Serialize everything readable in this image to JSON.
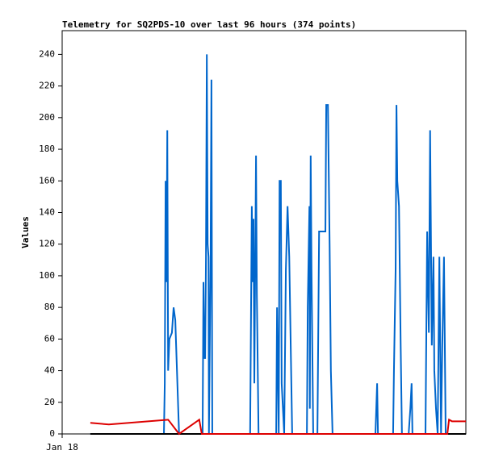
{
  "chart_data": {
    "type": "line",
    "title": "Telemetry for SQ2PDS-10 over last 96 hours (374 points)",
    "y_label": "Values",
    "xlim": [
      0,
      96
    ],
    "xticks": [
      {
        "value": 0,
        "label": "Jan 18"
      }
    ],
    "ylim": [
      0,
      255
    ],
    "yticks": [
      0,
      20,
      40,
      60,
      80,
      100,
      120,
      140,
      160,
      180,
      200,
      220,
      240
    ],
    "series": [
      {
        "color": "#0066cc",
        "x": [
          6.7,
          24.2,
          24.4,
          24.6,
          24.8,
          25.0,
          25.2,
          25.5,
          26.1,
          26.5,
          26.9,
          27.3,
          27.6,
          27.8,
          33.4,
          33.6,
          33.8,
          34.0,
          34.2,
          34.4,
          34.6,
          34.8,
          34.9,
          35.3,
          35.5,
          35.7,
          44.7,
          44.9,
          45.1,
          45.3,
          45.5,
          45.7,
          46.1,
          46.3,
          46.7,
          50.9,
          51.1,
          51.5,
          51.7,
          52.0,
          52.2,
          52.8,
          53.2,
          53.6,
          54.0,
          54.3,
          54.7,
          58.2,
          58.4,
          58.8,
          58.9,
          59.1,
          59.3,
          59.7,
          60.7,
          61.1,
          62.6,
          62.8,
          63.2,
          63.6,
          63.9,
          64.3,
          74.5,
          74.9,
          75.1,
          78.7,
          78.9,
          79.3,
          79.5,
          79.7,
          80.1,
          80.5,
          80.8,
          82.4,
          82.8,
          83.1,
          83.3,
          86.4,
          86.8,
          87.2,
          87.5,
          87.9,
          88.3,
          88.5,
          88.9,
          89.3,
          89.7,
          90.1,
          90.4,
          90.8,
          91.2,
          95.8
        ],
        "values": [
          0,
          0,
          32,
          160,
          96,
          192,
          40,
          60,
          64,
          80,
          72,
          40,
          16,
          0,
          0,
          96,
          48,
          48,
          112,
          240,
          120,
          112,
          0,
          112,
          224,
          0,
          0,
          72,
          144,
          96,
          136,
          32,
          176,
          88,
          0,
          0,
          80,
          0,
          160,
          160,
          32,
          0,
          104,
          144,
          112,
          64,
          0,
          0,
          80,
          144,
          16,
          176,
          104,
          0,
          0,
          128,
          128,
          208,
          208,
          120,
          40,
          0,
          0,
          32,
          0,
          0,
          40,
          104,
          208,
          160,
          144,
          56,
          0,
          0,
          16,
          32,
          0,
          0,
          128,
          64,
          192,
          56,
          112,
          40,
          16,
          0,
          112,
          0,
          56,
          112,
          0,
          0
        ]
      },
      {
        "color": "#000000",
        "x": [
          6.7,
          96.0
        ],
        "values": [
          0,
          0
        ]
      },
      {
        "color": "#dd0000",
        "x": [
          6.7,
          11.1,
          25.2,
          25.5,
          27.8,
          32.6,
          33.2,
          91.6,
          92.0,
          92.7,
          96.0
        ],
        "values": [
          7,
          6,
          9,
          8,
          0,
          9,
          0,
          0,
          9,
          8,
          8
        ]
      }
    ]
  }
}
